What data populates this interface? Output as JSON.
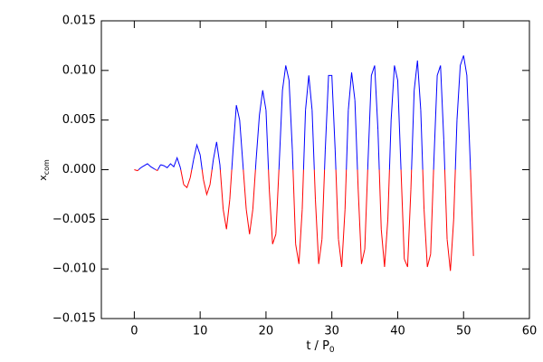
{
  "chart_data": {
    "type": "line",
    "x_label": {
      "text": "t / P",
      "subscript": "0"
    },
    "y_label": {
      "text": "x",
      "subscript": "com"
    },
    "x": [
      0,
      0.5,
      1,
      1.5,
      2,
      2.5,
      3,
      3.5,
      4,
      4.5,
      5,
      5.5,
      6,
      6.5,
      7,
      7.5,
      8,
      8.5,
      9,
      9.5,
      10,
      10.5,
      11,
      11.5,
      12,
      12.5,
      13,
      13.5,
      14,
      14.5,
      15,
      15.5,
      16,
      16.5,
      17,
      17.5,
      18,
      18.5,
      19,
      19.5,
      20,
      20.5,
      21,
      21.5,
      22,
      22.5,
      23,
      23.5,
      24,
      24.5,
      25,
      25.5,
      26,
      26.5,
      27,
      27.5,
      28,
      28.5,
      29,
      29.5,
      30,
      30.5,
      31,
      31.5,
      32,
      32.5,
      33,
      33.5,
      34,
      34.5,
      35,
      35.5,
      36,
      36.5,
      37,
      37.5,
      38,
      38.5,
      39,
      39.5,
      40,
      40.5,
      41,
      41.5,
      42,
      42.5,
      43,
      43.5,
      44,
      44.5,
      45,
      45.5,
      46,
      46.5,
      47,
      47.5,
      48,
      48.5,
      49,
      49.5,
      50,
      50.5,
      51,
      51.5
    ],
    "values": [
      0,
      -0.0001,
      0.0002,
      0.0004,
      0.0006,
      0.0003,
      0.0001,
      -0.0001,
      0.0005,
      0.0004,
      0.0002,
      0.0006,
      0.0003,
      0.0012,
      0.0002,
      -0.0015,
      -0.0018,
      -0.0008,
      0.001,
      0.0025,
      0.0015,
      -0.001,
      -0.0025,
      -0.0015,
      0.001,
      0.0028,
      0.0005,
      -0.004,
      -0.006,
      -0.003,
      0.002,
      0.0065,
      0.005,
      0.0005,
      -0.004,
      -0.0065,
      -0.004,
      0.001,
      0.0055,
      0.008,
      0.006,
      -0.002,
      -0.0075,
      -0.0065,
      0.0005,
      0.008,
      0.0105,
      0.009,
      0.002,
      -0.0075,
      -0.0095,
      -0.004,
      0.006,
      0.0095,
      0.006,
      -0.003,
      -0.0095,
      -0.007,
      0.002,
      0.0095,
      0.0095,
      0.002,
      -0.007,
      -0.0098,
      -0.004,
      0.006,
      0.0098,
      0.007,
      -0.002,
      -0.0095,
      -0.008,
      0.001,
      0.0095,
      0.0105,
      0.004,
      -0.006,
      -0.0098,
      -0.005,
      0.005,
      0.0105,
      0.009,
      0,
      -0.009,
      -0.0098,
      -0.002,
      0.008,
      0.011,
      0.006,
      -0.004,
      -0.0098,
      -0.0085,
      0.001,
      0.0095,
      0.0105,
      0.003,
      -0.007,
      -0.0102,
      -0.005,
      0.005,
      0.0105,
      0.0115,
      0.0095,
      0.001,
      -0.0087
    ],
    "color_positive": "#0000ff",
    "color_negative": "#ff0000",
    "xlim": [
      -5,
      60
    ],
    "xticks": [
      0,
      10,
      20,
      30,
      40,
      50,
      60
    ],
    "ylim": [
      -0.015,
      0.015
    ],
    "yticks": [
      {
        "value": -0.015,
        "label": "−0.015"
      },
      {
        "value": -0.01,
        "label": "−0.010"
      },
      {
        "value": -0.005,
        "label": "−0.005"
      },
      {
        "value": 0,
        "label": "0.000"
      },
      {
        "value": 0.005,
        "label": "0.005"
      },
      {
        "value": 0.01,
        "label": "0.010"
      },
      {
        "value": 0.015,
        "label": "0.015"
      }
    ]
  }
}
